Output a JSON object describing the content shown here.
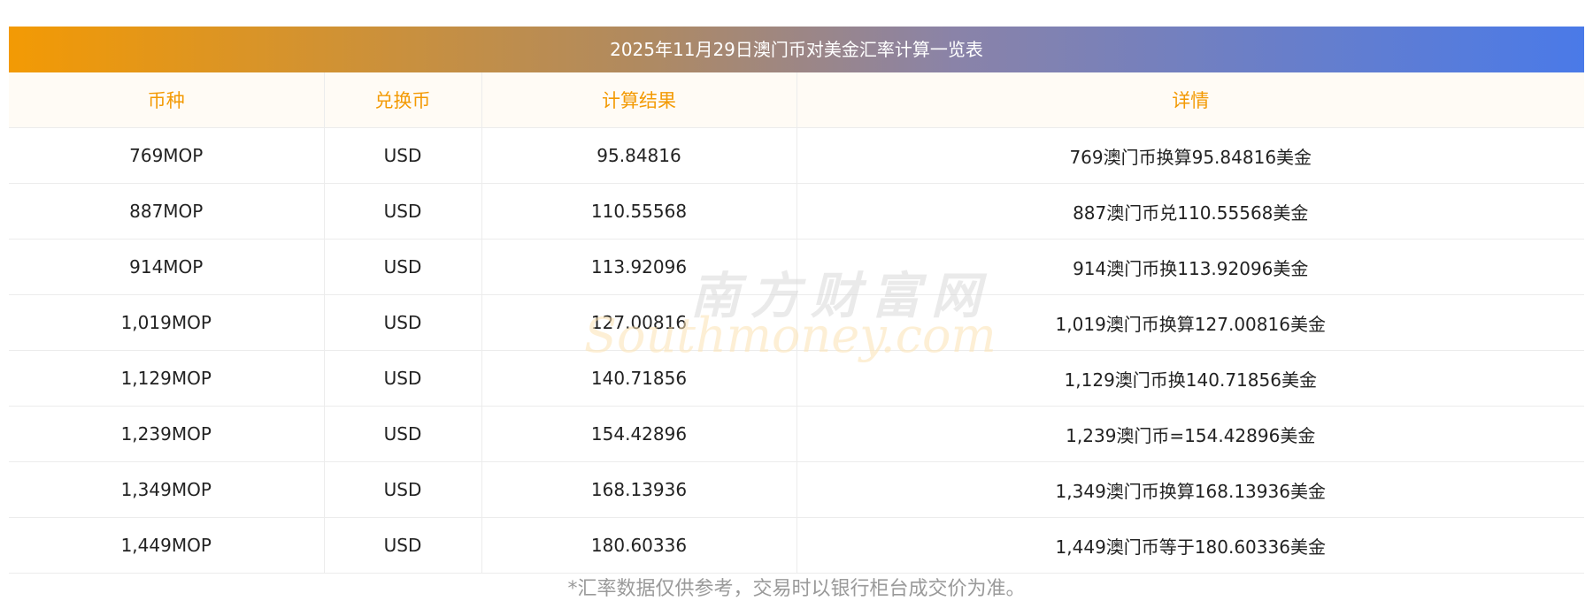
{
  "title": "2025年11月29日澳门币对美金汇率计算一览表",
  "columns": [
    "币种",
    "兑换币",
    "计算结果",
    "详情"
  ],
  "rows": [
    {
      "currency": "769MOP",
      "target": "USD",
      "result": "95.84816",
      "detail": "769澳门币换算95.84816美金"
    },
    {
      "currency": "887MOP",
      "target": "USD",
      "result": "110.55568",
      "detail": "887澳门币兑110.55568美金"
    },
    {
      "currency": "914MOP",
      "target": "USD",
      "result": "113.92096",
      "detail": "914澳门币换113.92096美金"
    },
    {
      "currency": "1,019MOP",
      "target": "USD",
      "result": "127.00816",
      "detail": "1,019澳门币换算127.00816美金"
    },
    {
      "currency": "1,129MOP",
      "target": "USD",
      "result": "140.71856",
      "detail": "1,129澳门币换140.71856美金"
    },
    {
      "currency": "1,239MOP",
      "target": "USD",
      "result": "154.42896",
      "detail": "1,239澳门币=154.42896美金"
    },
    {
      "currency": "1,349MOP",
      "target": "USD",
      "result": "168.13936",
      "detail": "1,349澳门币换算168.13936美金"
    },
    {
      "currency": "1,449MOP",
      "target": "USD",
      "result": "180.60336",
      "detail": "1,449澳门币等于180.60336美金"
    }
  ],
  "watermark": {
    "cn": "南方财富网",
    "en": "Southmoney.com"
  },
  "footnote": "*汇率数据仅供参考，交易时以银行柜台成交价为准。",
  "colors": {
    "accent": "#f39a04",
    "gradient_end": "#4a7ae8",
    "header_bg": "#fffbf5",
    "border": "#ececec",
    "footnote": "#9a9a9a"
  }
}
